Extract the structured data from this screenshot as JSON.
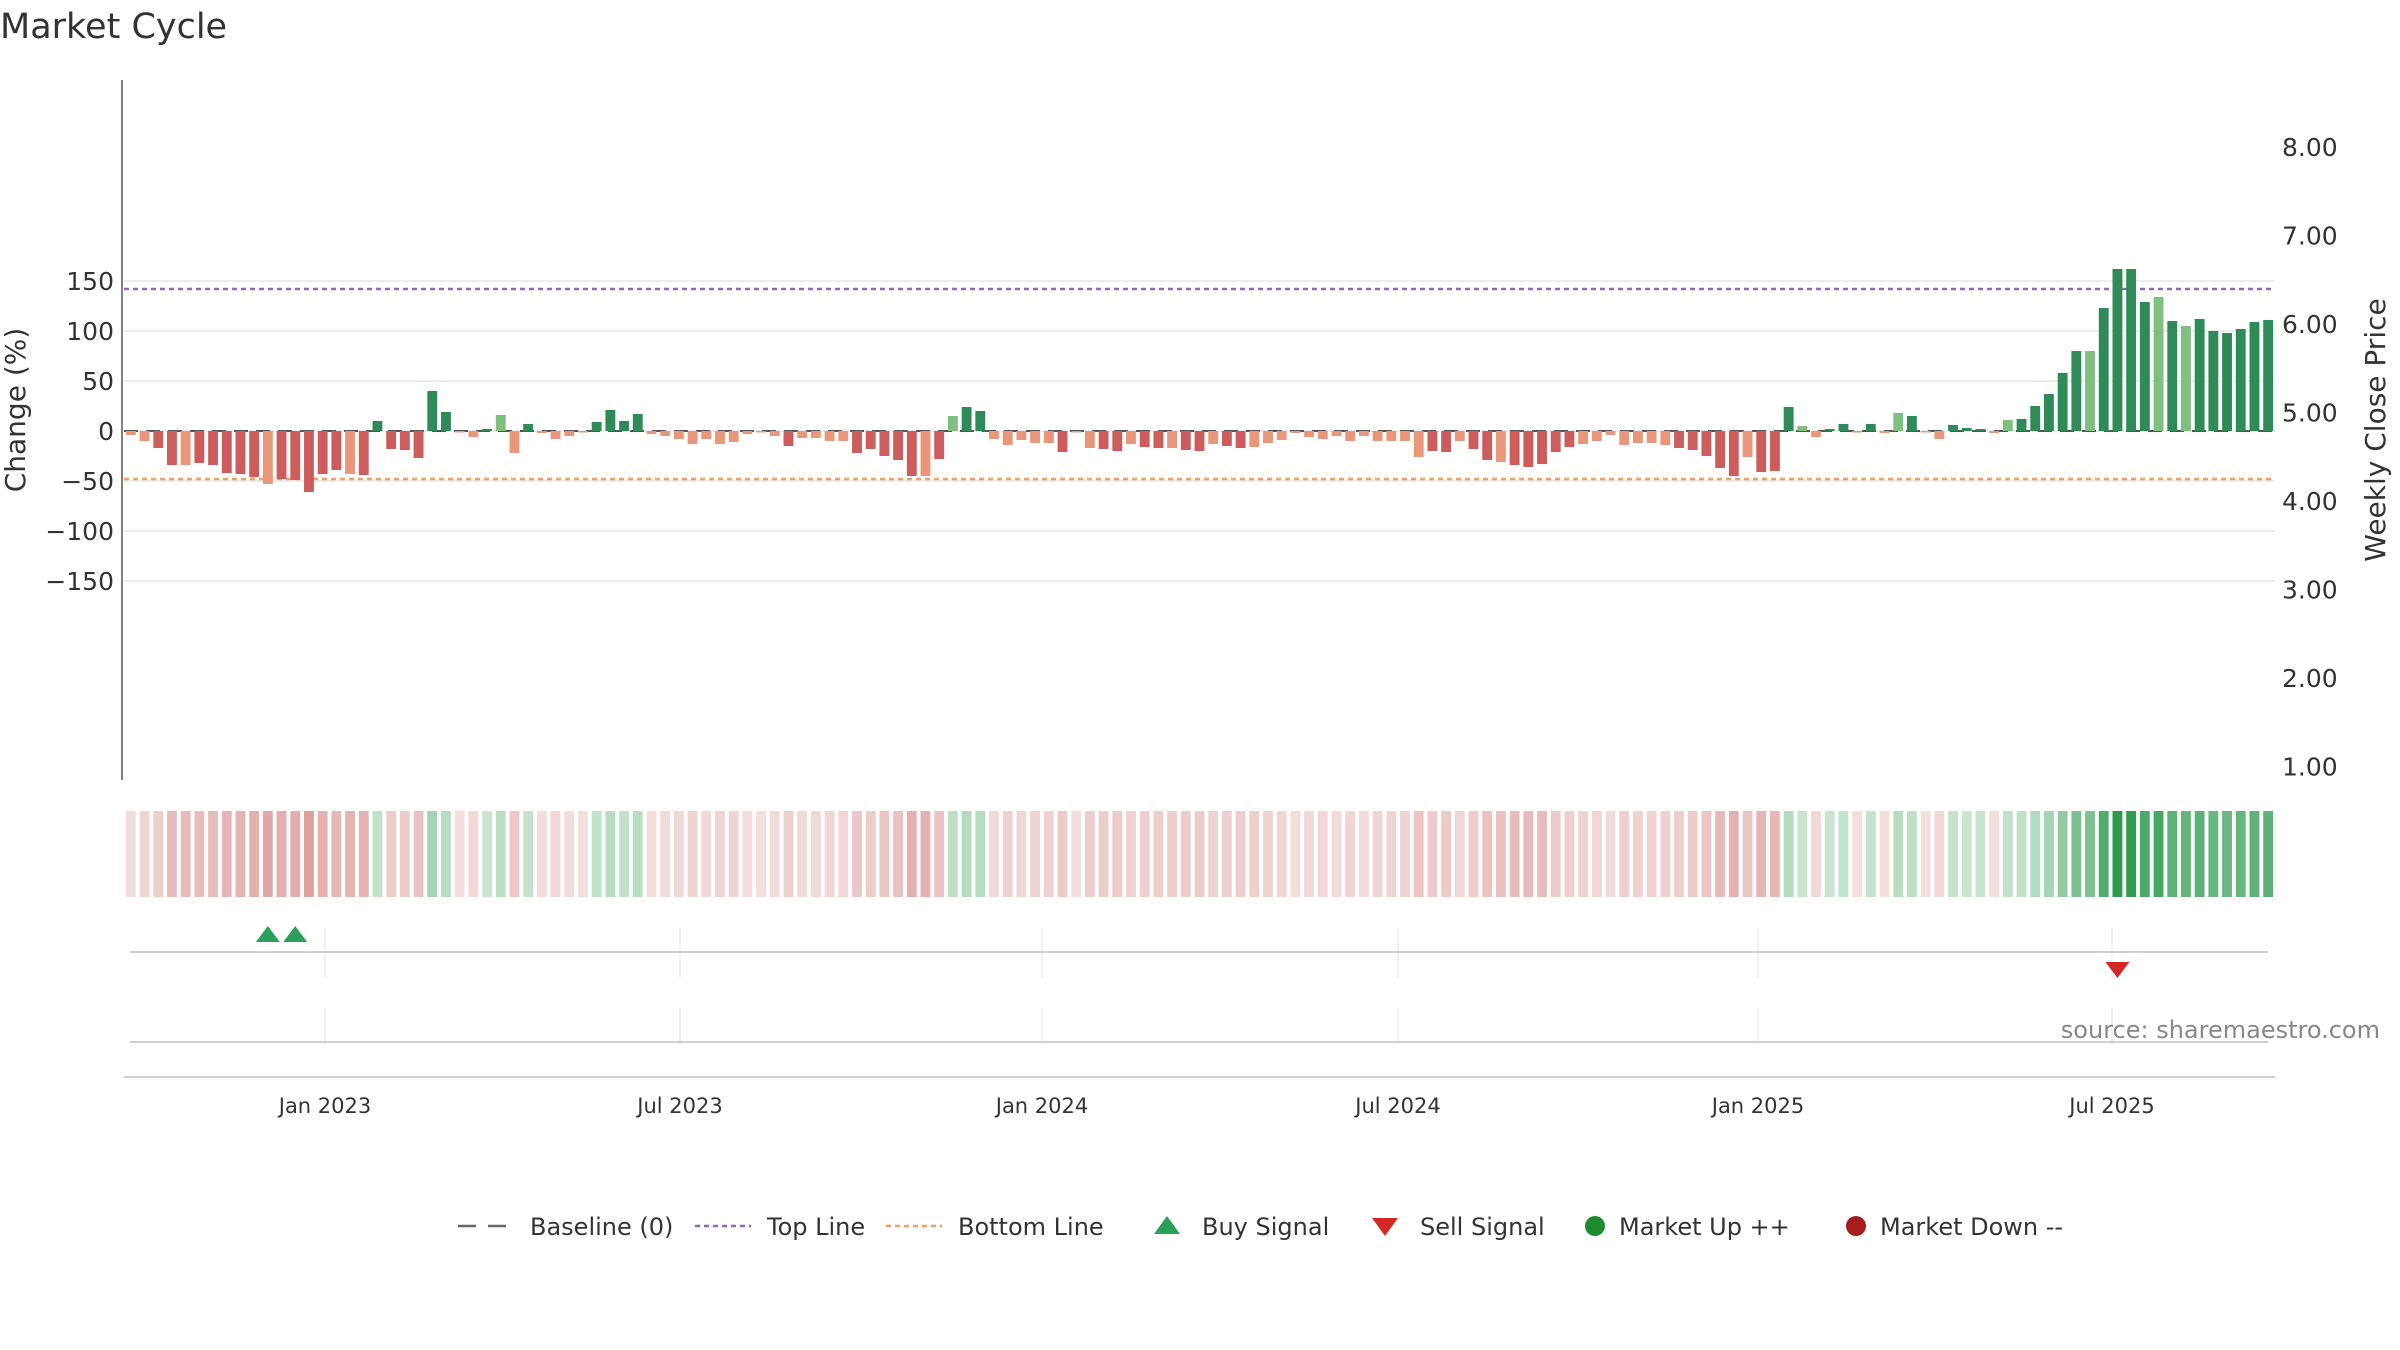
{
  "chart_data": {
    "type": "bar",
    "title": "Market Cycle",
    "ylabel_left": "Change (%)",
    "ylabel_right": "Weekly Close Price",
    "y_ticks_left": [
      150,
      100,
      50,
      0,
      -50,
      -100,
      -150
    ],
    "y_tick_labels_left": [
      "150",
      "100",
      "50",
      "0",
      "−100",
      "−150"
    ],
    "y_tick_labels_left_full": [
      "150",
      "100",
      "50",
      "0",
      "−50",
      "−100",
      "−150"
    ],
    "y_ticks_right": [
      8,
      7,
      6,
      5,
      4,
      3,
      2,
      1
    ],
    "y_tick_labels_right": [
      "8.00",
      "7.00",
      "6.00",
      "5.00",
      "4.00",
      "3.00",
      "2.00",
      "1.00"
    ],
    "ylim_left": [
      -175,
      175
    ],
    "x_tick_labels": [
      "Jan 2023",
      "Jul 2023",
      "Jan 2024",
      "Jul 2024",
      "Jan 2025",
      "Jul 2025"
    ],
    "top_line": 142,
    "bottom_line": -48,
    "values": [
      -4,
      -10,
      -17,
      -34,
      -34,
      -32,
      -34,
      -42,
      -43,
      -46,
      -53,
      -48,
      -49,
      -61,
      -43,
      -39,
      -43,
      -44,
      10,
      -18,
      -19,
      -27,
      40,
      19,
      -1,
      -6,
      2,
      16,
      -22,
      7,
      -2,
      -8,
      -5,
      -1,
      9,
      21,
      10,
      17,
      -3,
      -5,
      -8,
      -13,
      -8,
      -13,
      -11,
      -3,
      -1,
      -5,
      -15,
      -7,
      -7,
      -10,
      -10,
      -22,
      -18,
      -25,
      -29,
      -45,
      -45,
      -28,
      15,
      24,
      20,
      -8,
      -14,
      -9,
      -12,
      -12,
      -21,
      -1,
      -17,
      -18,
      -20,
      -13,
      -16,
      -17,
      -17,
      -19,
      -20,
      -13,
      -15,
      -17,
      -16,
      -12,
      -9,
      -2,
      -6,
      -8,
      -5,
      -10,
      -5,
      -10,
      -10,
      -10,
      -26,
      -20,
      -21,
      -10,
      -18,
      -29,
      -31,
      -34,
      -36,
      -33,
      -21,
      -16,
      -13,
      -10,
      -4,
      -14,
      -12,
      -12,
      -14,
      -17,
      -19,
      -25,
      -37,
      -45,
      -26,
      -41,
      -40,
      24,
      5,
      -6,
      2,
      7,
      -1,
      7,
      -2,
      18,
      15,
      -1,
      -8,
      6,
      3,
      2,
      -2,
      11,
      12,
      25,
      37,
      58,
      80,
      80,
      123,
      162,
      162,
      129,
      134,
      110,
      105,
      112,
      100,
      98,
      102,
      109,
      111
    ],
    "signals": [
      {
        "type": "buy",
        "bar": 10
      },
      {
        "type": "buy",
        "bar": 12
      },
      {
        "type": "sell",
        "bar": 145
      }
    ],
    "source": "source: sharemaestro.com",
    "legend": [
      {
        "label": "Baseline (0)",
        "symbol": "dashed",
        "color": "#666666"
      },
      {
        "label": "Top Line",
        "symbol": "dotted",
        "color": "#9467bd"
      },
      {
        "label": "Bottom Line",
        "symbol": "dotted",
        "color": "#f0a060"
      },
      {
        "label": "Buy Signal",
        "symbol": "triangle-up",
        "color": "#2ca05a"
      },
      {
        "label": "Sell Signal",
        "symbol": "triangle-down",
        "color": "#d62728"
      },
      {
        "label": "Market Up ++",
        "symbol": "circle",
        "color": "#1e8c2e"
      },
      {
        "label": "Market Down --",
        "symbol": "circle",
        "color": "#a51c1c"
      }
    ],
    "colors": {
      "pos_strong": "#2e8b57",
      "pos_light": "#7fbf7f",
      "neg_strong": "#cd5c5c",
      "neg_light": "#e9967a",
      "grid": "#e6e6e6"
    }
  }
}
